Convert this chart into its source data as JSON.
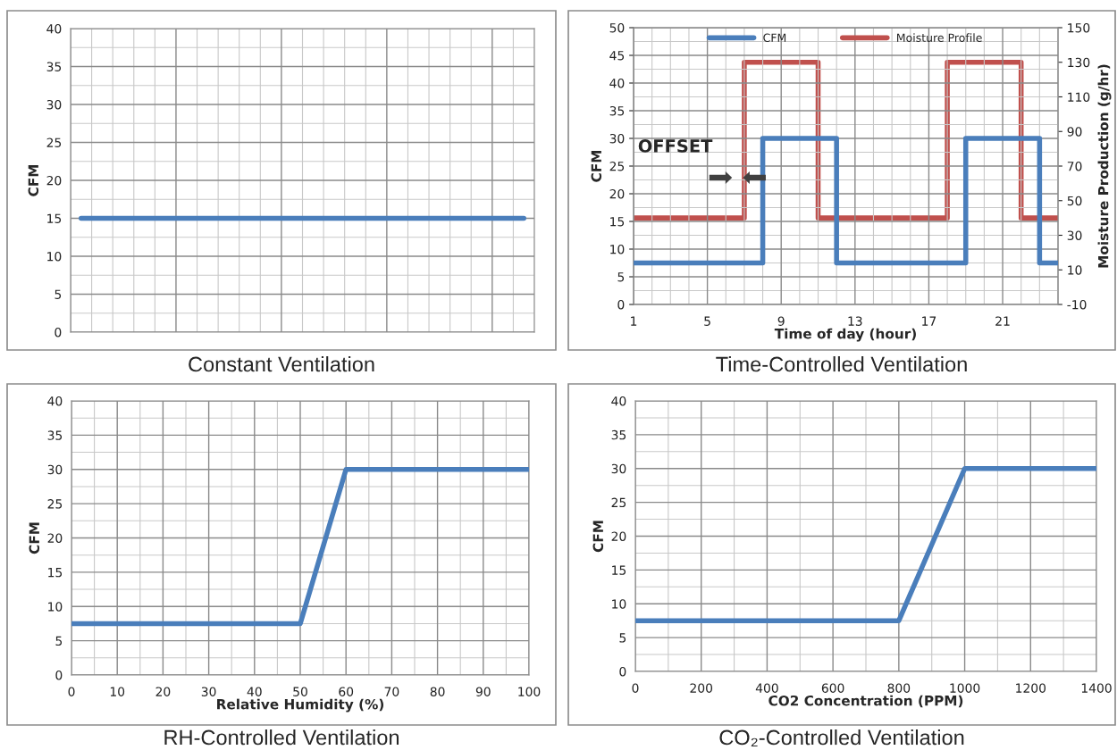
{
  "chart_data": [
    {
      "type": "line",
      "title": "Constant Ventilation",
      "ylabel": "CFM",
      "categories": [
        null,
        null,
        null,
        null,
        null,
        null,
        null,
        null,
        null,
        null,
        null,
        null,
        null,
        null,
        null,
        null,
        null,
        null,
        null,
        null,
        null,
        null
      ],
      "ylim": [
        0,
        40
      ],
      "yticks": [
        0,
        5,
        10,
        15,
        20,
        25,
        30,
        35,
        40
      ],
      "grid": true,
      "tick_labels": "y",
      "legend": false,
      "series": [
        {
          "color": "#4a7ebb",
          "values": [
            15,
            15,
            15,
            15,
            15,
            15,
            15,
            15,
            15,
            15,
            15,
            15,
            15,
            15,
            15,
            15,
            15,
            15,
            15,
            15,
            15,
            15
          ]
        }
      ]
    },
    {
      "type": "step",
      "title": "Time-Controlled Ventilation",
      "xlabel": "Time of day (hour)",
      "ylabel": "CFM",
      "y2label": "Moisture Production (g/hr)",
      "xlim": [
        1,
        24
      ],
      "xticks": [
        1,
        5,
        9,
        13,
        17,
        21
      ],
      "ylim": [
        0,
        50
      ],
      "yticks": [
        0,
        5,
        10,
        15,
        20,
        25,
        30,
        35,
        40,
        45,
        50
      ],
      "y2lim": [
        -10,
        150
      ],
      "y2ticks": [
        -10,
        10,
        30,
        50,
        70,
        90,
        110,
        130,
        150
      ],
      "grid": true,
      "legend": "top",
      "annotations": [
        "OFFSET"
      ],
      "series": [
        {
          "name": "CFM",
          "color": "#4a7ebb",
          "x": [
            1,
            8,
            12,
            19,
            23,
            24
          ],
          "values": [
            7.5,
            30,
            7.5,
            30,
            7.5,
            7.5
          ]
        },
        {
          "name": "Moisture Profile",
          "color": "#c0504d",
          "axis": "y2",
          "x": [
            1,
            7,
            11,
            18,
            22,
            24
          ],
          "values": [
            40,
            130,
            40,
            130,
            40,
            40
          ]
        }
      ]
    },
    {
      "type": "line",
      "title": "RH-Controlled Ventilation",
      "xlabel": "Relative Humidity (%)",
      "ylabel": "CFM",
      "xlim": [
        0,
        100
      ],
      "xticks": [
        0,
        10,
        20,
        30,
        40,
        50,
        60,
        70,
        80,
        90,
        100
      ],
      "ylim": [
        0,
        40
      ],
      "yticks": [
        0,
        5,
        10,
        15,
        20,
        25,
        30,
        35,
        40
      ],
      "grid": true,
      "legend": false,
      "series": [
        {
          "color": "#4a7ebb",
          "x": [
            0,
            50,
            60,
            100
          ],
          "values": [
            7.5,
            7.5,
            30,
            30
          ]
        }
      ]
    },
    {
      "type": "line",
      "title": "CO₂-Controlled Ventilation",
      "xlabel": "CO2 Concentration (PPM)",
      "ylabel": "CFM",
      "xlim": [
        0,
        1400
      ],
      "xticks": [
        0,
        200,
        400,
        600,
        800,
        1000,
        1200,
        1400
      ],
      "ylim": [
        0,
        40
      ],
      "yticks": [
        0,
        5,
        10,
        15,
        20,
        25,
        30,
        35,
        40
      ],
      "grid": true,
      "legend": false,
      "series": [
        {
          "color": "#4a7ebb",
          "x": [
            0,
            800,
            1000,
            1400
          ],
          "values": [
            7.5,
            7.5,
            30,
            30
          ]
        }
      ]
    }
  ]
}
